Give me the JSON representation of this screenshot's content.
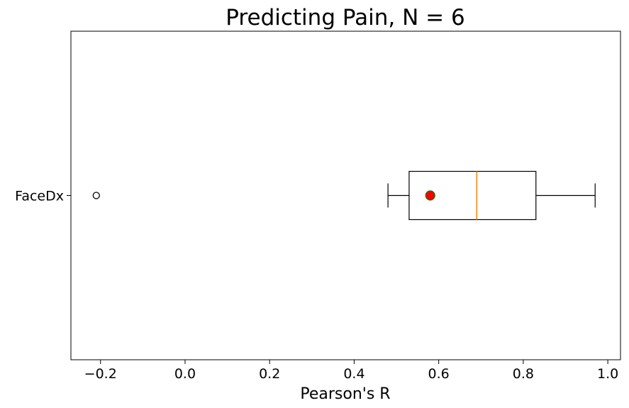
{
  "chart_data": {
    "type": "boxplot",
    "orientation": "horizontal",
    "title": "Predicting Pain, N = 6",
    "xlabel": "Pearson's R",
    "ylabel": "",
    "categories": [
      "FaceDx"
    ],
    "xlim": [
      -0.27,
      1.03
    ],
    "xticks": [
      -0.2,
      0.0,
      0.2,
      0.4,
      0.6,
      0.8,
      1.0
    ],
    "xtick_labels": [
      "−0.2",
      "0.0",
      "0.2",
      "0.4",
      "0.6",
      "0.8",
      "1.0"
    ],
    "grid": false,
    "boxes": [
      {
        "category": "FaceDx",
        "whisker_low": 0.48,
        "q1": 0.53,
        "median": 0.69,
        "q3": 0.83,
        "whisker_high": 0.97,
        "mean": 0.58,
        "outliers": [
          -0.21
        ]
      }
    ],
    "colors": {
      "box": "#000000",
      "median": "#ff7f0e",
      "mean_fill": "#ff0000",
      "mean_edge": "#008000",
      "outlier_edge": "#000000"
    }
  }
}
